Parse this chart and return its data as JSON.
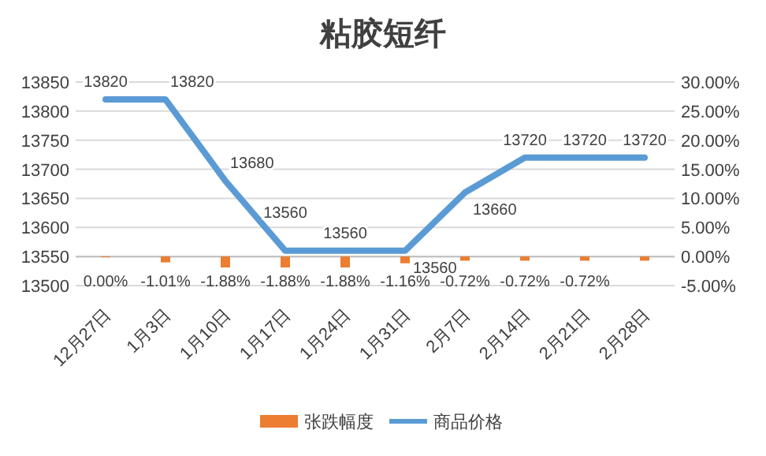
{
  "chart_data": {
    "type": "line",
    "title": "粘胶短纤",
    "categories": [
      "12月27日",
      "1月3日",
      "1月10日",
      "1月17日",
      "1月24日",
      "1月31日",
      "2月7日",
      "2月14日",
      "2月21日",
      "2月28日"
    ],
    "series": [
      {
        "name": "张跌幅度",
        "type": "bar",
        "axis": "y2",
        "color": "#ed7d31",
        "values": [
          0,
          -1.01,
          -1.88,
          -1.88,
          -1.88,
          -1.16,
          -0.72,
          -0.72,
          -0.72,
          -0.72
        ],
        "value_labels": [
          "0.00%",
          "-1.01%",
          "-1.88%",
          "-1.88%",
          "-1.88%",
          "-1.16%",
          "-0.72%",
          "-0.72%",
          "-0.72%",
          null
        ]
      },
      {
        "name": "商品价格",
        "color": "#5b9bd5",
        "values": [
          13820,
          13820,
          13680,
          13560,
          13560,
          13560,
          13660,
          13720,
          13720,
          13720
        ],
        "data_labels": true
      }
    ],
    "ylim": [
      13500,
      13850
    ],
    "yticks": [
      13500,
      13550,
      13600,
      13650,
      13700,
      13750,
      13800,
      13850
    ],
    "y2lim": [
      -5,
      30
    ],
    "y2ticks": [
      {
        "value": -5,
        "label": "-5.00%"
      },
      {
        "value": 0,
        "label": "0.00%"
      },
      {
        "value": 5,
        "label": "5.00%"
      },
      {
        "value": 10,
        "label": "10.00%"
      },
      {
        "value": 15,
        "label": "15.00%"
      },
      {
        "value": 20,
        "label": "20.00%"
      },
      {
        "value": 25,
        "label": "25.00%"
      },
      {
        "value": 30,
        "label": "30.00%"
      }
    ],
    "grid": "y",
    "legend": "bottom"
  }
}
